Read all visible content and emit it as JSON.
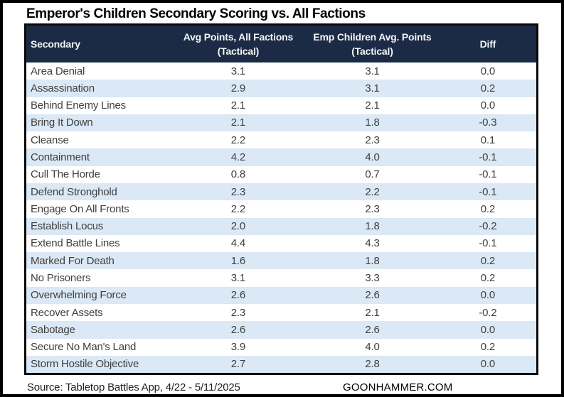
{
  "title": "Emperor's Children Secondary Scoring vs. All Factions",
  "colors": {
    "header_bg": "#1c2b45",
    "header_text": "#f3f5f8",
    "row_alt_bg": "#dbe8f5",
    "body_text": "#3f3f3f",
    "border": "#000000"
  },
  "footer": {
    "source": "Source: Tabletop Battles App, 4/22 - 5/11/2025",
    "brand": "GOONHAMMER.COM"
  },
  "chart_data": {
    "type": "table",
    "title": "Emperor's Children Secondary Scoring vs. All Factions",
    "header": {
      "columns": [
        {
          "lines": [
            "Secondary"
          ]
        },
        {
          "lines": [
            "Avg Points, All Factions",
            "(Tactical)"
          ]
        },
        {
          "lines": [
            "Emp Children Avg. Points",
            "(Tactical)"
          ]
        },
        {
          "lines": [
            "Diff"
          ]
        }
      ]
    },
    "rows": [
      {
        "secondary": "Area Denial",
        "all_factions_avg": 3.1,
        "emp_children_avg": 3.1,
        "diff": 0.0
      },
      {
        "secondary": "Assassination",
        "all_factions_avg": 2.9,
        "emp_children_avg": 3.1,
        "diff": 0.2
      },
      {
        "secondary": "Behind Enemy Lines",
        "all_factions_avg": 2.1,
        "emp_children_avg": 2.1,
        "diff": 0.0
      },
      {
        "secondary": "Bring It Down",
        "all_factions_avg": 2.1,
        "emp_children_avg": 1.8,
        "diff": -0.3
      },
      {
        "secondary": "Cleanse",
        "all_factions_avg": 2.2,
        "emp_children_avg": 2.3,
        "diff": 0.1
      },
      {
        "secondary": "Containment",
        "all_factions_avg": 4.2,
        "emp_children_avg": 4.0,
        "diff": -0.1
      },
      {
        "secondary": "Cull The Horde",
        "all_factions_avg": 0.8,
        "emp_children_avg": 0.7,
        "diff": -0.1
      },
      {
        "secondary": "Defend Stronghold",
        "all_factions_avg": 2.3,
        "emp_children_avg": 2.2,
        "diff": -0.1
      },
      {
        "secondary": "Engage On All Fronts",
        "all_factions_avg": 2.2,
        "emp_children_avg": 2.3,
        "diff": 0.2
      },
      {
        "secondary": "Establish Locus",
        "all_factions_avg": 2.0,
        "emp_children_avg": 1.8,
        "diff": -0.2
      },
      {
        "secondary": "Extend Battle Lines",
        "all_factions_avg": 4.4,
        "emp_children_avg": 4.3,
        "diff": -0.1
      },
      {
        "secondary": "Marked For Death",
        "all_factions_avg": 1.6,
        "emp_children_avg": 1.8,
        "diff": 0.2
      },
      {
        "secondary": "No Prisoners",
        "all_factions_avg": 3.1,
        "emp_children_avg": 3.3,
        "diff": 0.2
      },
      {
        "secondary": "Overwhelming Force",
        "all_factions_avg": 2.6,
        "emp_children_avg": 2.6,
        "diff": 0.0
      },
      {
        "secondary": "Recover Assets",
        "all_factions_avg": 2.3,
        "emp_children_avg": 2.1,
        "diff": -0.2
      },
      {
        "secondary": "Sabotage",
        "all_factions_avg": 2.6,
        "emp_children_avg": 2.6,
        "diff": 0.0
      },
      {
        "secondary": "Secure No Man's Land",
        "all_factions_avg": 3.9,
        "emp_children_avg": 4.0,
        "diff": 0.2
      },
      {
        "secondary": "Storm Hostile Objective",
        "all_factions_avg": 2.7,
        "emp_children_avg": 2.8,
        "diff": 0.0
      }
    ]
  }
}
